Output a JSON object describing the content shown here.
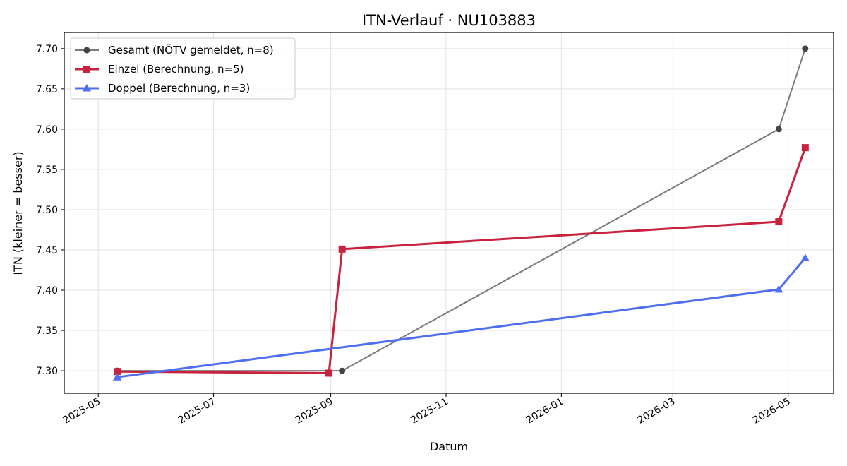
{
  "chart_data": {
    "type": "line",
    "title": "ITN-Verlauf · NU103883",
    "xlabel": "Datum",
    "ylabel": "ITN  (kleiner = besser)",
    "x_type": "date",
    "xlim": [
      "2025-04-13",
      "2026-05-25"
    ],
    "ylim": [
      7.272,
      7.72
    ],
    "x_ticks": [
      "2025-05-01",
      "2025-07-01",
      "2025-09-01",
      "2025-11-01",
      "2026-01-01",
      "2026-03-01",
      "2026-05-01"
    ],
    "x_tick_labels": [
      "2025-05",
      "2025-07",
      "2025-09",
      "2025-11",
      "2026-01",
      "2026-03",
      "2026-05"
    ],
    "y_ticks": [
      7.3,
      7.35,
      7.4,
      7.45,
      7.5,
      7.55,
      7.6,
      7.65,
      7.7
    ],
    "y_tick_labels": [
      "7.30",
      "7.35",
      "7.40",
      "7.45",
      "7.50",
      "7.55",
      "7.60",
      "7.65",
      "7.70"
    ],
    "grid": true,
    "legend_position": "top-left",
    "series": [
      {
        "name": "Gesamt (NÖTV gemeldet, n=8)",
        "color": "#7a7a7a",
        "marker_color": "#444444",
        "marker": "circle",
        "line_width": 2,
        "x": [
          "2025-05-11",
          "2025-09-07",
          "2026-04-26",
          "2026-05-10"
        ],
        "y": [
          7.3,
          7.3,
          7.6,
          7.7
        ]
      },
      {
        "name": "Einzel (Berechnung, n=5)",
        "color": "#c8223e",
        "marker_color": "#c8223e",
        "marker": "square",
        "line_width": 3,
        "x": [
          "2025-05-11",
          "2025-08-31",
          "2025-09-07",
          "2026-04-26",
          "2026-05-10"
        ],
        "y": [
          7.299,
          7.297,
          7.451,
          7.485,
          7.577
        ]
      },
      {
        "name": "Doppel (Berechnung, n=3)",
        "color": "#4f6ef0",
        "marker_color": "#4f6ef0",
        "marker": "triangle",
        "line_width": 3,
        "x": [
          "2025-05-11",
          "2026-04-26",
          "2026-05-10"
        ],
        "y": [
          7.292,
          7.401,
          7.44
        ]
      }
    ]
  }
}
